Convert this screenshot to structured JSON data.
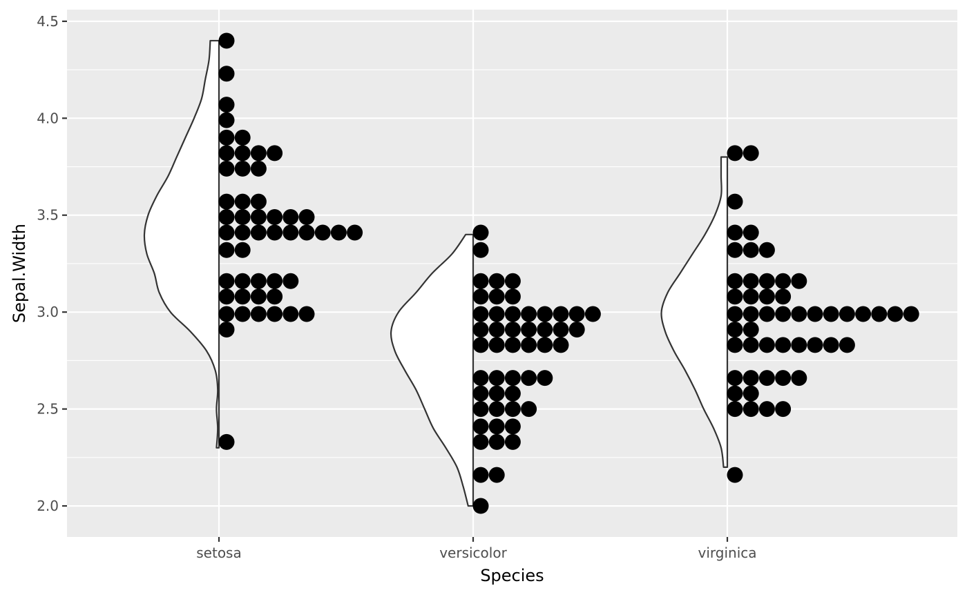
{
  "chart_data": {
    "type": "half-violin + dotplot",
    "xlabel": "Species",
    "ylabel": "Sepal.Width",
    "ylim": [
      1.84,
      4.56
    ],
    "yticks": [
      2.0,
      2.5,
      3.0,
      3.5,
      4.0,
      4.5
    ],
    "ytick_labels": [
      "2.0",
      "2.5",
      "3.0",
      "3.5",
      "4.0",
      "4.5"
    ],
    "categories": [
      "setosa",
      "versicolor",
      "virginica"
    ],
    "grid": true,
    "legend": "none",
    "colors": {
      "panel": "#ebebeb",
      "grid": "#ffffff",
      "violin_fill": "#ffffff",
      "violin_line": "#333333",
      "dot": "#000000"
    },
    "series": [
      {
        "category": "setosa",
        "violin_range": [
          2.3,
          4.4
        ],
        "violin_profile": [
          [
            2.3,
            0.02
          ],
          [
            2.4,
            0.01
          ],
          [
            2.5,
            0.02
          ],
          [
            2.6,
            0.01
          ],
          [
            2.7,
            0.03
          ],
          [
            2.8,
            0.1
          ],
          [
            2.9,
            0.23
          ],
          [
            3.0,
            0.39
          ],
          [
            3.1,
            0.48
          ],
          [
            3.2,
            0.52
          ],
          [
            3.3,
            0.58
          ],
          [
            3.4,
            0.6
          ],
          [
            3.5,
            0.57
          ],
          [
            3.6,
            0.5
          ],
          [
            3.7,
            0.41
          ],
          [
            3.8,
            0.34
          ],
          [
            3.9,
            0.27
          ],
          [
            4.0,
            0.2
          ],
          [
            4.1,
            0.14
          ],
          [
            4.2,
            0.11
          ],
          [
            4.3,
            0.08
          ],
          [
            4.4,
            0.07
          ]
        ],
        "dots": [
          {
            "y": 4.4,
            "n": 1
          },
          {
            "y": 4.23,
            "n": 1
          },
          {
            "y": 4.07,
            "n": 1
          },
          {
            "y": 3.99,
            "n": 1
          },
          {
            "y": 3.9,
            "n": 2
          },
          {
            "y": 3.82,
            "n": 4
          },
          {
            "y": 3.74,
            "n": 3
          },
          {
            "y": 3.57,
            "n": 3
          },
          {
            "y": 3.49,
            "n": 6
          },
          {
            "y": 3.41,
            "n": 9
          },
          {
            "y": 3.32,
            "n": 2
          },
          {
            "y": 3.16,
            "n": 5
          },
          {
            "y": 3.08,
            "n": 4
          },
          {
            "y": 2.99,
            "n": 6
          },
          {
            "y": 2.91,
            "n": 1
          },
          {
            "y": 2.33,
            "n": 1
          }
        ]
      },
      {
        "category": "versicolor",
        "violin_range": [
          2.0,
          3.4
        ],
        "violin_profile": [
          [
            2.0,
            0.04
          ],
          [
            2.1,
            0.08
          ],
          [
            2.2,
            0.13
          ],
          [
            2.3,
            0.22
          ],
          [
            2.4,
            0.32
          ],
          [
            2.5,
            0.39
          ],
          [
            2.6,
            0.46
          ],
          [
            2.7,
            0.55
          ],
          [
            2.8,
            0.63
          ],
          [
            2.9,
            0.66
          ],
          [
            3.0,
            0.6
          ],
          [
            3.1,
            0.46
          ],
          [
            3.2,
            0.33
          ],
          [
            3.3,
            0.17
          ],
          [
            3.4,
            0.06
          ]
        ],
        "dots": [
          {
            "y": 3.41,
            "n": 1
          },
          {
            "y": 3.32,
            "n": 1
          },
          {
            "y": 3.16,
            "n": 3
          },
          {
            "y": 3.08,
            "n": 3
          },
          {
            "y": 2.99,
            "n": 8
          },
          {
            "y": 2.91,
            "n": 7
          },
          {
            "y": 2.83,
            "n": 6
          },
          {
            "y": 2.66,
            "n": 5
          },
          {
            "y": 2.58,
            "n": 3
          },
          {
            "y": 2.5,
            "n": 4
          },
          {
            "y": 2.41,
            "n": 3
          },
          {
            "y": 2.33,
            "n": 3
          },
          {
            "y": 2.16,
            "n": 2
          },
          {
            "y": 2.0,
            "n": 1
          }
        ]
      },
      {
        "category": "virginica",
        "violin_range": [
          2.2,
          3.8
        ],
        "violin_profile": [
          [
            2.2,
            0.03
          ],
          [
            2.3,
            0.05
          ],
          [
            2.4,
            0.11
          ],
          [
            2.5,
            0.19
          ],
          [
            2.6,
            0.26
          ],
          [
            2.7,
            0.34
          ],
          [
            2.8,
            0.43
          ],
          [
            2.9,
            0.5
          ],
          [
            3.0,
            0.53
          ],
          [
            3.1,
            0.48
          ],
          [
            3.2,
            0.38
          ],
          [
            3.3,
            0.28
          ],
          [
            3.4,
            0.18
          ],
          [
            3.5,
            0.1
          ],
          [
            3.6,
            0.05
          ],
          [
            3.7,
            0.05
          ],
          [
            3.8,
            0.05
          ]
        ],
        "dots": [
          {
            "y": 3.82,
            "n": 2
          },
          {
            "y": 3.57,
            "n": 1
          },
          {
            "y": 3.41,
            "n": 2
          },
          {
            "y": 3.32,
            "n": 3
          },
          {
            "y": 3.16,
            "n": 5
          },
          {
            "y": 3.08,
            "n": 4
          },
          {
            "y": 2.99,
            "n": 12
          },
          {
            "y": 2.91,
            "n": 2
          },
          {
            "y": 2.83,
            "n": 8
          },
          {
            "y": 2.66,
            "n": 5
          },
          {
            "y": 2.58,
            "n": 2
          },
          {
            "y": 2.5,
            "n": 4
          },
          {
            "y": 2.16,
            "n": 1
          }
        ]
      }
    ]
  }
}
